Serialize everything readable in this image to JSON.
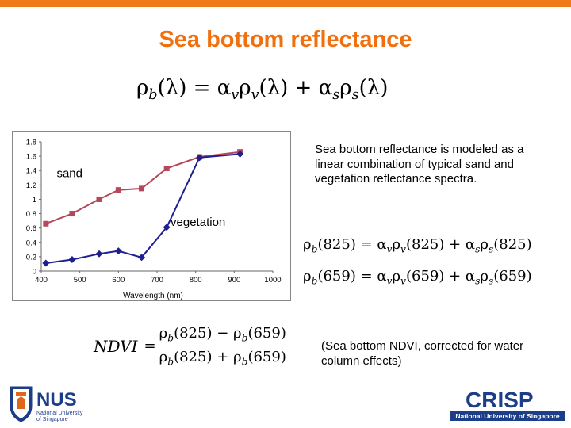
{
  "slide": {
    "title": "Sea bottom reflectance",
    "description": "Sea bottom reflectance is modeled as a linear combination of typical sand and vegetation reflectance spectra.",
    "ndvi_note": "(Sea bottom NDVI, corrected for water column effects)",
    "accent_color": "#f07a18"
  },
  "equations": {
    "main": {
      "rho": "ρ",
      "b": "b",
      "lam": "(λ)",
      "eq": " = ",
      "alpha": "α",
      "v": "v",
      "plus": " + ",
      "s": "s"
    },
    "eq825": {
      "arg": "(825)"
    },
    "eq659": {
      "arg": "(659)"
    },
    "ndvi": {
      "lhs": "NDVI",
      "minus": " − ",
      "plus": " + "
    }
  },
  "chart_data": {
    "type": "line",
    "xlabel": "Wavelength (nm)",
    "ylabel": "",
    "xlim": [
      400,
      1000
    ],
    "ylim": [
      0,
      1.8
    ],
    "xticks": [
      400,
      500,
      600,
      700,
      800,
      900,
      1000
    ],
    "yticks": [
      0,
      0.2,
      0.4,
      0.6,
      0.8,
      1,
      1.2,
      1.4,
      1.6,
      1.8
    ],
    "grid": false,
    "series": [
      {
        "name": "sand",
        "color": "#b5475a",
        "marker": "square",
        "x": [
          412,
          480,
          550,
          600,
          660,
          725,
          810,
          915
        ],
        "y": [
          0.66,
          0.8,
          1.0,
          1.13,
          1.15,
          1.43,
          1.59,
          1.66
        ]
      },
      {
        "name": "vegetation",
        "color": "#1f1f8f",
        "marker": "diamond",
        "x": [
          412,
          480,
          550,
          600,
          660,
          725,
          810,
          915
        ],
        "y": [
          0.11,
          0.16,
          0.24,
          0.28,
          0.19,
          0.61,
          1.58,
          1.63
        ]
      }
    ]
  },
  "logos": {
    "nus": {
      "name": "NUS",
      "line1": "National University",
      "line2": "of Singapore"
    },
    "crisp": {
      "name": "CRISP",
      "subtitle": "National University of Singapore"
    }
  }
}
